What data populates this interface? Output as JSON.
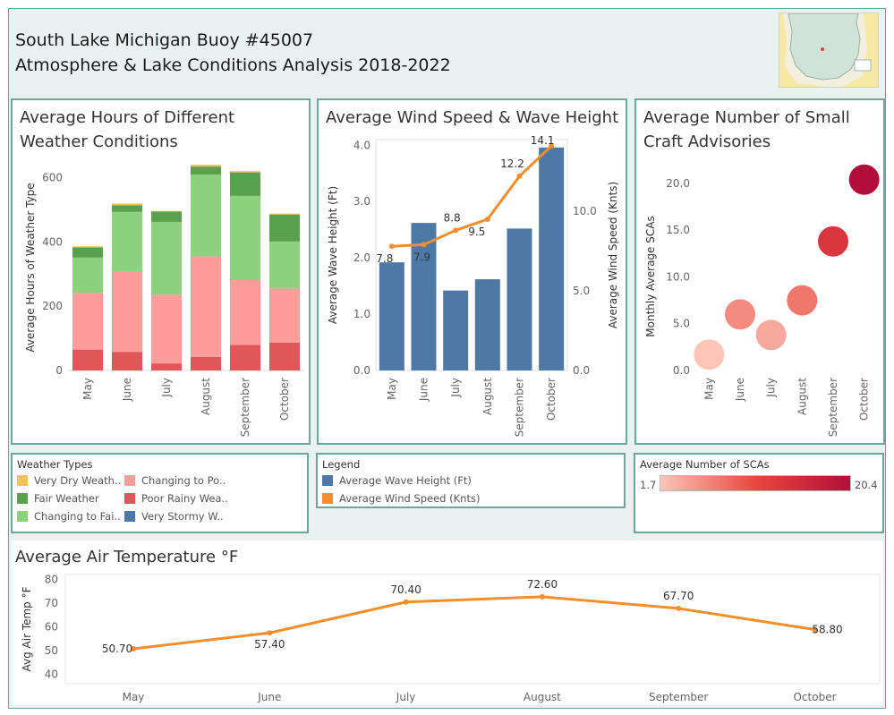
{
  "header": {
    "title_line1": "South Lake Michigan Buoy #45007",
    "title_line2": "Atmosphere & Lake Conditions Analysis 2018-2022"
  },
  "panels": {
    "weather_title_line1": "Average Hours of Different",
    "weather_title_line2": "Weather Conditions",
    "wind_title": "Average Wind Speed & Wave Height",
    "sca_title_line1": "Average Number of Small",
    "sca_title_line2": "Craft Advisories",
    "temp_title": "Average Air Temperature °F"
  },
  "legends": {
    "weather": {
      "title": "Weather Types",
      "items": [
        {
          "label": "Very Dry Weath..",
          "color": "#f1c453"
        },
        {
          "label": "Changing to Po..",
          "color": "#ff9d9a"
        },
        {
          "label": "Fair Weather",
          "color": "#59a14f"
        },
        {
          "label": "Poor Rainy Wea..",
          "color": "#e15759"
        },
        {
          "label": "Changing to Fai..",
          "color": "#8cd17d"
        },
        {
          "label": "Very Stormy W..",
          "color": "#4e79a7"
        }
      ]
    },
    "wind": {
      "title": "Legend",
      "items": [
        {
          "label": "Average Wave Height (Ft)",
          "color": "#4e79a7"
        },
        {
          "label": "Average Wind Speed (Knts)",
          "color": "#f28e2b"
        }
      ]
    },
    "sca": {
      "title": "Average Number of SCAs",
      "min_label": "1.7",
      "max_label": "20.4",
      "color_low": "#fcc5b8",
      "color_high": "#b10f3a"
    }
  },
  "chart_data": [
    {
      "id": "weather",
      "type": "bar",
      "stacked": true,
      "categories": [
        "May",
        "June",
        "July",
        "August",
        "September",
        "October"
      ],
      "ylabel": "Average Hours of Weather Type",
      "ylim": [
        0,
        640
      ],
      "yticks": [
        0,
        200,
        400,
        600
      ],
      "series": [
        {
          "name": "Poor Rainy Wea..",
          "color": "#e15759",
          "values": [
            65,
            58,
            22,
            42,
            80,
            87
          ]
        },
        {
          "name": "Changing to Po..",
          "color": "#ff9d9a",
          "values": [
            176,
            251,
            214,
            313,
            201,
            168
          ]
        },
        {
          "name": "Changing to Fai..",
          "color": "#8cd17d",
          "values": [
            110,
            184,
            226,
            254,
            262,
            146
          ]
        },
        {
          "name": "Fair Weather",
          "color": "#59a14f",
          "values": [
            32,
            21,
            32,
            25,
            73,
            84
          ]
        },
        {
          "name": "Very Dry Weath..",
          "color": "#f1c453",
          "values": [
            3,
            5,
            2,
            6,
            4,
            3
          ]
        }
      ]
    },
    {
      "id": "wind",
      "type": "bar",
      "categories": [
        "May",
        "June",
        "July",
        "August",
        "September",
        "October"
      ],
      "ylabel": "Average Wave Height (Ft)",
      "ylabel_right": "Average Wind Speed (Knts)",
      "ylim": [
        0,
        4.1
      ],
      "yticks": [
        0.0,
        1.0,
        2.0,
        3.0,
        4.0
      ],
      "ytick_labels": [
        "0.0",
        "1.0",
        "2.0",
        "3.0",
        "4.0"
      ],
      "y2lim": [
        0,
        14.5
      ],
      "y2ticks": [
        0.0,
        5.0,
        10.0
      ],
      "y2tick_labels": [
        "0.0",
        "5.0",
        "10.0"
      ],
      "series": [
        {
          "name": "Average Wave Height (Ft)",
          "type": "bar",
          "color": "#4e79a7",
          "values": [
            1.92,
            2.62,
            1.42,
            1.62,
            2.52,
            3.96
          ]
        },
        {
          "name": "Average Wind Speed (Knts)",
          "type": "line",
          "color": "#f28e2b",
          "values": [
            7.8,
            7.9,
            8.8,
            9.5,
            12.2,
            14.1
          ],
          "labels": [
            "7.8",
            "7.9",
            "8.8",
            "9.5",
            "12.2",
            "14.1"
          ]
        }
      ]
    },
    {
      "id": "sca",
      "type": "scatter",
      "categories": [
        "May",
        "June",
        "July",
        "August",
        "September",
        "October"
      ],
      "ylabel": "Monthly Average SCAs",
      "ylim": [
        0,
        22
      ],
      "yticks": [
        0,
        5,
        10,
        15,
        20
      ],
      "ytick_labels": [
        "0.0",
        "5.0",
        "10.0",
        "15.0",
        "20.0"
      ],
      "values": [
        1.7,
        6.0,
        3.8,
        7.5,
        13.8,
        20.4
      ]
    },
    {
      "id": "temperature",
      "type": "line",
      "categories": [
        "May",
        "June",
        "July",
        "August",
        "September",
        "October"
      ],
      "ylabel": "Avg Air Temp °F",
      "ylim": [
        36,
        82
      ],
      "yticks": [
        40,
        50,
        60,
        70,
        80
      ],
      "values": [
        50.7,
        57.4,
        70.4,
        72.6,
        67.7,
        58.8
      ],
      "labels": [
        "50.70",
        "57.40",
        "70.40",
        "72.60",
        "67.70",
        "58.80"
      ],
      "color": "#f28e2b"
    }
  ]
}
